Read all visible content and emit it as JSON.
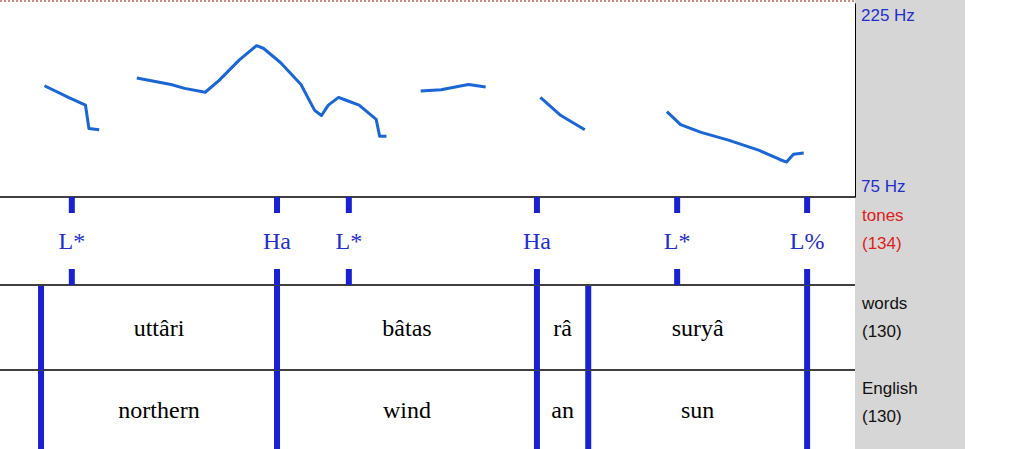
{
  "chart_data": {
    "type": "line",
    "xlim": [
      0,
      2.5
    ],
    "ylim": [
      75,
      225
    ],
    "yticks": [
      {
        "value": 75,
        "label": "75 Hz"
      },
      {
        "value": 225,
        "label": "225 Hz"
      }
    ],
    "tick_labels": "y",
    "x": [
      0.13,
      0.2,
      0.25,
      0.26,
      0.29,
      0.33,
      0.4,
      0.5,
      0.54,
      0.6,
      0.64,
      0.7,
      0.75,
      0.77,
      0.82,
      0.88,
      0.92,
      0.94,
      0.96,
      0.99,
      1.01,
      1.05,
      1.1,
      1.11,
      1.13,
      1.18,
      1.23,
      1.29,
      1.35,
      1.37,
      1.42,
      1.5,
      1.58,
      1.64,
      1.71,
      1.85,
      1.95,
      1.99,
      2.05,
      2.13,
      2.22,
      2.28,
      2.3,
      2.32,
      2.35
    ],
    "series": [
      {
        "color": "#1a66d6",
        "values": [
          161,
          152,
          146,
          128,
          127,
          null,
          167,
          162,
          159,
          156,
          165,
          181,
          192,
          190,
          179,
          162,
          142,
          138,
          146,
          152,
          150,
          146,
          135,
          122,
          122,
          null,
          157,
          158,
          161,
          162,
          160,
          null,
          152,
          138,
          127,
          null,
          141,
          131,
          125,
          119,
          111,
          104,
          102,
          108,
          109
        ]
      }
    ]
  },
  "tiers": [
    {
      "name": "tones",
      "id": "(134)",
      "points": [
        {
          "time": 0.21,
          "label": "L*"
        },
        {
          "time": 0.81,
          "label": "Ha"
        },
        {
          "time": 1.02,
          "label": "L*"
        },
        {
          "time": 1.57,
          "label": "Ha"
        },
        {
          "time": 1.98,
          "label": "L*"
        },
        {
          "time": 2.36,
          "label": "L%"
        }
      ]
    },
    {
      "name": "words",
      "id": "(130)",
      "boundaries": [
        0.12,
        0.81,
        1.57,
        1.72,
        2.36
      ],
      "intervals": [
        "uttâri",
        "bâtas",
        "râ",
        "suryâ"
      ]
    },
    {
      "name": "English",
      "id": "(130)",
      "boundaries": [
        0.12,
        0.81,
        1.57,
        1.72,
        2.36
      ],
      "intervals": [
        "northern",
        "wind",
        "an",
        "sun"
      ]
    }
  ]
}
